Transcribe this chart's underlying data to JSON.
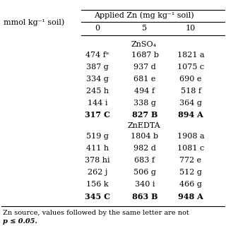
{
  "header_left": "mmol kg⁻¹ soil)",
  "header_zn_label": "Applied Zn (mg kg⁻¹ soil)",
  "header_zn_levels": [
    "0",
    "5",
    "10"
  ],
  "znso4_label": "ZnSO₄",
  "znedta_label": "ZnEDTA",
  "znso4_rows": [
    [
      "474 fᵃ",
      "1687 b",
      "1821 a"
    ],
    [
      "387 g",
      "937 d",
      "1075 c"
    ],
    [
      "334 g",
      "681 e",
      "690 e"
    ],
    [
      "245 h",
      "494 f",
      "518 f"
    ],
    [
      "144 i",
      "338 g",
      "364 g"
    ],
    [
      "317 C",
      "827 B",
      "894 A"
    ]
  ],
  "znedta_rows": [
    [
      "519 g",
      "1804 b",
      "1908 a"
    ],
    [
      "411 h",
      "982 d",
      "1081 c"
    ],
    [
      "378 hi",
      "683 f",
      "772 e"
    ],
    [
      "262 j",
      "506 g",
      "512 g"
    ],
    [
      "156 k",
      "340 i",
      "466 g"
    ],
    [
      "345 C",
      "863 B",
      "948 A"
    ]
  ],
  "footnote1": "Zn source, values followed by the same letter are not",
  "footnote2": "p ≤ 0.05.",
  "font_size": 8.0,
  "line_color": "#555555"
}
